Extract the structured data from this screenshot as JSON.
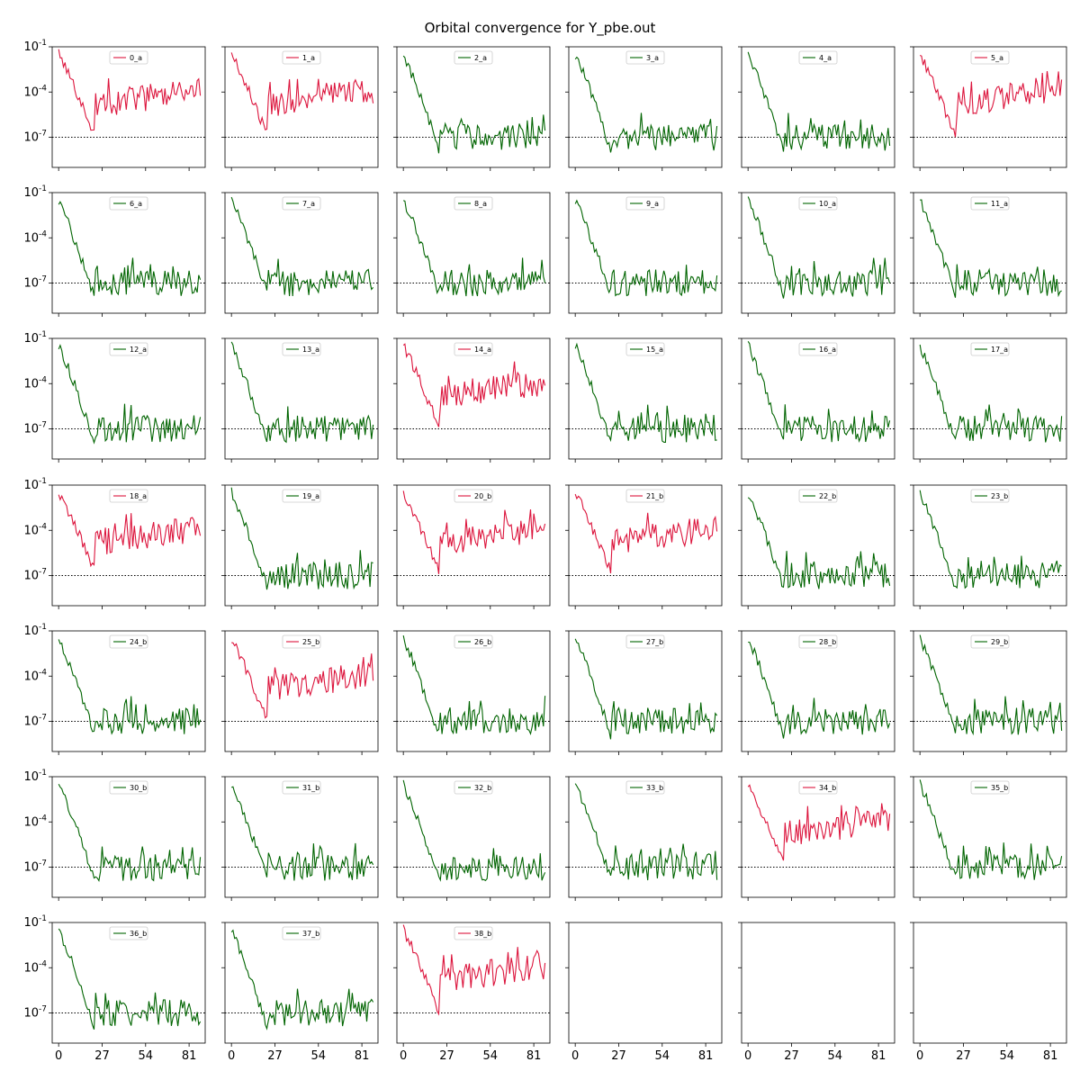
{
  "title": "Orbital convergence for Y_pbe.out",
  "colors": {
    "converged": "#006400",
    "unconverged": "#dc143c",
    "threshold": "#000000"
  },
  "chart_data": {
    "type": "line",
    "title": "Orbital convergence for Y_pbe.out",
    "grid": false,
    "layout": "7x6 subplots, shared axes",
    "yscale": "log",
    "ylim": [
      1e-09,
      0.1
    ],
    "xlim": [
      -4,
      91
    ],
    "xticks": [
      0,
      27,
      54,
      81
    ],
    "xtick_labels": [
      "0",
      "27",
      "54",
      "81"
    ],
    "ytick_labels": [
      "10^-1",
      "10^-4",
      "10^-7"
    ],
    "threshold": 1e-07,
    "legend_position": "top-center",
    "empty_panels": 3,
    "panels": [
      {
        "label": "0_a",
        "status": "unconverged",
        "seed": 101
      },
      {
        "label": "1_a",
        "status": "unconverged",
        "seed": 102
      },
      {
        "label": "2_a",
        "status": "converged",
        "seed": 103
      },
      {
        "label": "3_a",
        "status": "converged",
        "seed": 104
      },
      {
        "label": "4_a",
        "status": "converged",
        "seed": 105
      },
      {
        "label": "5_a",
        "status": "unconverged",
        "seed": 106
      },
      {
        "label": "6_a",
        "status": "converged",
        "seed": 107
      },
      {
        "label": "7_a",
        "status": "converged",
        "seed": 108
      },
      {
        "label": "8_a",
        "status": "converged",
        "seed": 109
      },
      {
        "label": "9_a",
        "status": "converged",
        "seed": 110
      },
      {
        "label": "10_a",
        "status": "converged",
        "seed": 111
      },
      {
        "label": "11_a",
        "status": "converged",
        "seed": 112
      },
      {
        "label": "12_a",
        "status": "converged",
        "seed": 113
      },
      {
        "label": "13_a",
        "status": "converged",
        "seed": 114
      },
      {
        "label": "14_a",
        "status": "unconverged",
        "seed": 115
      },
      {
        "label": "15_a",
        "status": "converged",
        "seed": 116
      },
      {
        "label": "16_a",
        "status": "converged",
        "seed": 117
      },
      {
        "label": "17_a",
        "status": "converged",
        "seed": 118
      },
      {
        "label": "18_a",
        "status": "unconverged",
        "seed": 119
      },
      {
        "label": "19_a",
        "status": "converged",
        "seed": 120
      },
      {
        "label": "20_b",
        "status": "unconverged",
        "seed": 121
      },
      {
        "label": "21_b",
        "status": "unconverged",
        "seed": 122
      },
      {
        "label": "22_b",
        "status": "converged",
        "seed": 123
      },
      {
        "label": "23_b",
        "status": "converged",
        "seed": 124
      },
      {
        "label": "24_b",
        "status": "converged",
        "seed": 125
      },
      {
        "label": "25_b",
        "status": "unconverged",
        "seed": 126
      },
      {
        "label": "26_b",
        "status": "converged",
        "seed": 127
      },
      {
        "label": "27_b",
        "status": "converged",
        "seed": 128
      },
      {
        "label": "28_b",
        "status": "converged",
        "seed": 129
      },
      {
        "label": "29_b",
        "status": "converged",
        "seed": 130
      },
      {
        "label": "30_b",
        "status": "converged",
        "seed": 131
      },
      {
        "label": "31_b",
        "status": "converged",
        "seed": 132
      },
      {
        "label": "32_b",
        "status": "converged",
        "seed": 133
      },
      {
        "label": "33_b",
        "status": "converged",
        "seed": 134
      },
      {
        "label": "34_b",
        "status": "unconverged",
        "seed": 135
      },
      {
        "label": "35_b",
        "status": "converged",
        "seed": 136
      },
      {
        "label": "36_b",
        "status": "converged",
        "seed": 137
      },
      {
        "label": "37_b",
        "status": "converged",
        "seed": 138
      },
      {
        "label": "38_b",
        "status": "unconverged",
        "seed": 139
      }
    ]
  }
}
